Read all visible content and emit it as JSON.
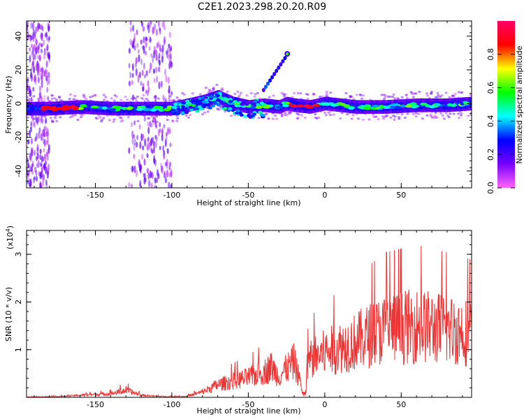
{
  "title": "C2E1.2023.298.20.20.R09",
  "chart_data": [
    {
      "type": "heatmap",
      "xlabel": "Height of straight line (km)",
      "ylabel": "Frequency (Hz)",
      "xlim": [
        -195,
        96
      ],
      "ylim": [
        -50,
        49
      ],
      "xticks": [
        -150,
        -100,
        -50,
        0,
        50
      ],
      "yticks": [
        -40,
        -20,
        0,
        20,
        40
      ],
      "colorbar": {
        "label": "Normalized spectral amplitude",
        "range": [
          0,
          1
        ],
        "ticks": [
          0.0,
          0.2,
          0.4,
          0.6,
          0.8
        ],
        "tick_labels": [
          "0.0",
          "0.2",
          "0.4",
          "0.6",
          "0.8"
        ],
        "colors": [
          "#ff66ff",
          "#7700ff",
          "#0000ff",
          "#00ffff",
          "#00ff00",
          "#ffff00",
          "#ff0000",
          "#ff0066"
        ]
      },
      "ridge": {
        "x": [
          -195,
          -180,
          -160,
          -140,
          -120,
          -100,
          -90,
          -80,
          -70,
          -60,
          -50,
          -40,
          -30,
          -25,
          -20,
          -10,
          0,
          20,
          40,
          60,
          80,
          96
        ],
        "y": [
          -3,
          -3,
          -2,
          -3,
          -3,
          -3,
          -1,
          1,
          4,
          0,
          -2,
          -1,
          -2,
          0,
          -1,
          -2,
          0,
          -2,
          -2,
          -1,
          -1,
          0
        ]
      },
      "grid": false
    },
    {
      "type": "line",
      "xlabel": "Height of straight line (km)",
      "ylabel": "SNR (10 * v/v)",
      "yscale_label": "(x10",
      "yscale_exp": "4",
      "xlim": [
        -195,
        96
      ],
      "ylim": [
        0,
        3.5
      ],
      "xticks": [
        -150,
        -100,
        -50,
        0,
        50
      ],
      "yticks": [
        1,
        2,
        3
      ],
      "color": "#ee3333",
      "envelope": {
        "x": [
          -195,
          -170,
          -160,
          -150,
          -140,
          -130,
          -120,
          -110,
          -100,
          -90,
          -80,
          -70,
          -60,
          -50,
          -40,
          -35,
          -30,
          -20,
          -15,
          -10,
          0,
          10,
          20,
          30,
          40,
          50,
          60,
          70,
          80,
          90,
          96
        ],
        "y": [
          0.01,
          0.03,
          0.06,
          0.08,
          0.1,
          0.2,
          0.06,
          0.03,
          0.02,
          0.03,
          0.15,
          0.35,
          0.45,
          0.55,
          0.7,
          0.85,
          0.6,
          1.0,
          0.3,
          1.05,
          1.25,
          1.4,
          1.55,
          1.75,
          1.9,
          1.95,
          2.0,
          1.95,
          1.9,
          1.85,
          1.8
        ]
      },
      "grid": false
    }
  ]
}
